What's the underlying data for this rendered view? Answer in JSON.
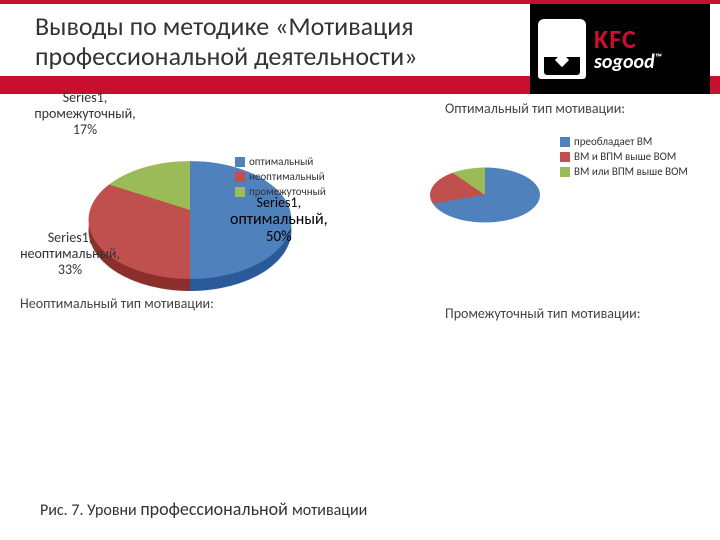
{
  "header": {
    "title": "Выводы по методике «Мотивация профессиональной деятельности»",
    "logo_brand": "KFC",
    "logo_tag": "sogood",
    "logo_tm": "™",
    "brand_red": "#c8102e"
  },
  "main_chart": {
    "type": "pie",
    "series_name": "Series1",
    "slices": [
      {
        "label": "оптимальный",
        "value": 50,
        "color": "#4f81bd",
        "rim": "#2a5a99"
      },
      {
        "label": "неоптимальный",
        "value": 33,
        "color": "#c0504d",
        "rim": "#8a2f2c"
      },
      {
        "label": "промежуточный",
        "value": 17,
        "color": "#9bbb59",
        "rim": "#6d8a36"
      }
    ],
    "rotation_deg": 0,
    "callouts": {
      "intermediate": {
        "l1": "Series1,",
        "l2": "промежуточный,",
        "l3": "17%"
      },
      "nonoptimal": {
        "l1": "Series1,",
        "l2": "неоптимальный,",
        "l3": "33%"
      },
      "optimal": {
        "l1": "Series1,",
        "l2": "оптимальный,",
        "l3": "50%"
      }
    },
    "legend": [
      {
        "label": "оптимальный",
        "color": "#4f81bd"
      },
      {
        "label": "неоптимальный",
        "color": "#c0504d"
      },
      {
        "label": "промежуточный",
        "color": "#9bbb59"
      }
    ]
  },
  "optimal_block": {
    "title": "Оптимальный тип мотивации:",
    "type": "pie",
    "slices": [
      {
        "value": 70,
        "color": "#4f81bd"
      },
      {
        "value": 20,
        "color": "#c0504d"
      },
      {
        "value": 10,
        "color": "#9bbb59"
      }
    ],
    "legend": [
      {
        "label": "преобладает ВМ",
        "color": "#4f81bd"
      },
      {
        "label": "ВМ и ВПМ выше ВОМ",
        "color": "#c0504d"
      },
      {
        "label": "ВМ или ВПМ выше ВОМ",
        "color": "#9bbb59"
      }
    ]
  },
  "nonoptimal_block": {
    "title": "Неоптимальный тип мотивации:"
  },
  "intermediate_block": {
    "title": "Промежуточный тип мотивации:"
  },
  "caption": {
    "pre": "Рис. 7. Уровни ",
    "em": "профессиональной ",
    "post": "мотивации"
  }
}
